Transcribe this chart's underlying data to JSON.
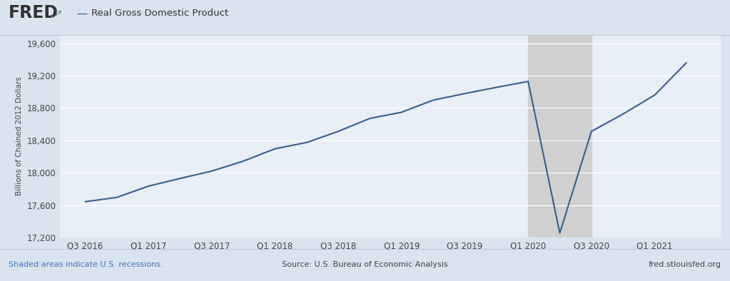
{
  "title": "Real Gross Domestic Product",
  "ylabel": "Billions of Chained 2012 Dollars",
  "background_color": "#d9e4ef",
  "plot_bg_color": "#e8eff6",
  "line_color": "#3a5f8c",
  "recession_color": "#d0d0d0",
  "ylim": [
    17200,
    19700
  ],
  "yticks": [
    17200,
    17600,
    18000,
    18400,
    18800,
    19200,
    19600
  ],
  "footer_left": "Shaded areas indicate U.S. recessions.",
  "footer_center": "Source: U.S. Bureau of Economic Analysis",
  "footer_right": "fred.stlouisfed.org",
  "fred_text": "FRED",
  "x_values": [
    2016.5,
    2016.75,
    2017.0,
    2017.25,
    2017.5,
    2017.75,
    2018.0,
    2018.25,
    2018.5,
    2018.75,
    2019.0,
    2019.25,
    2019.5,
    2019.75,
    2020.0,
    2020.25,
    2020.5,
    2020.75,
    2021.0,
    2021.25
  ],
  "y_values": [
    17642,
    17695,
    17834,
    17929,
    18020,
    18143,
    18296,
    18373,
    18511,
    18671,
    18747,
    18897,
    18978,
    19055,
    19128,
    17254,
    18511,
    18725,
    18960,
    19358
  ],
  "xtick_positions": [
    2016.5,
    2017.0,
    2017.5,
    2018.0,
    2018.5,
    2019.0,
    2019.5,
    2020.0,
    2020.5,
    2021.0
  ],
  "xtick_labels": [
    "Q3 2016",
    "Q1 2017",
    "Q3 2017",
    "Q1 2018",
    "Q3 2018",
    "Q1 2019",
    "Q3 2019",
    "Q1 2020",
    "Q3 2020",
    "Q1 2021"
  ],
  "recession_start": 2020.0,
  "recession_end": 2020.5
}
